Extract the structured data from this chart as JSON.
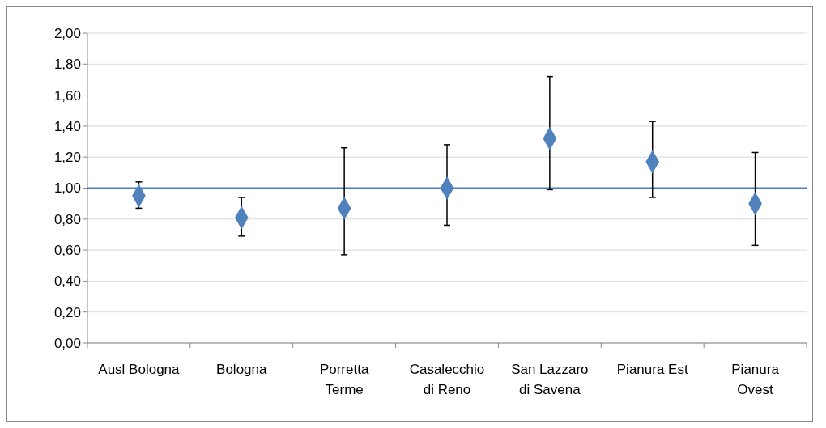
{
  "chart_data": {
    "type": "scatter",
    "categories": [
      "Ausl Bologna",
      "Bologna",
      "Porretta Terme",
      "Casalecchio di Reno",
      "San Lazzaro di Savena",
      "Pianura Est",
      "Pianura Ovest"
    ],
    "values": [
      0.95,
      0.81,
      0.87,
      1.0,
      1.32,
      1.17,
      0.9
    ],
    "errors": [
      [
        0.87,
        1.04
      ],
      [
        0.69,
        0.94
      ],
      [
        0.57,
        1.26
      ],
      [
        0.76,
        1.28
      ],
      [
        0.99,
        1.72
      ],
      [
        0.94,
        1.43
      ],
      [
        0.63,
        1.23
      ]
    ],
    "color": "#4f81bd",
    "marker": "diamond",
    "ylim": [
      0,
      2
    ],
    "yticks": [
      {
        "value": 0,
        "label": "0,00"
      },
      {
        "value": 0.2,
        "label": "0,20"
      },
      {
        "value": 0.4,
        "label": "0,40"
      },
      {
        "value": 0.6,
        "label": "0,60"
      },
      {
        "value": 0.8,
        "label": "0,80"
      },
      {
        "value": 1,
        "label": "1,00"
      },
      {
        "value": 1.2,
        "label": "1,20"
      },
      {
        "value": 1.4,
        "label": "1,40"
      },
      {
        "value": 1.6,
        "label": "1,60"
      },
      {
        "value": 1.8,
        "label": "1,80"
      },
      {
        "value": 2,
        "label": "2,00"
      }
    ],
    "grid": "y",
    "ref_lines": [
      {
        "axis": "y",
        "value": 1,
        "color": "#4a7ebb"
      }
    ]
  }
}
